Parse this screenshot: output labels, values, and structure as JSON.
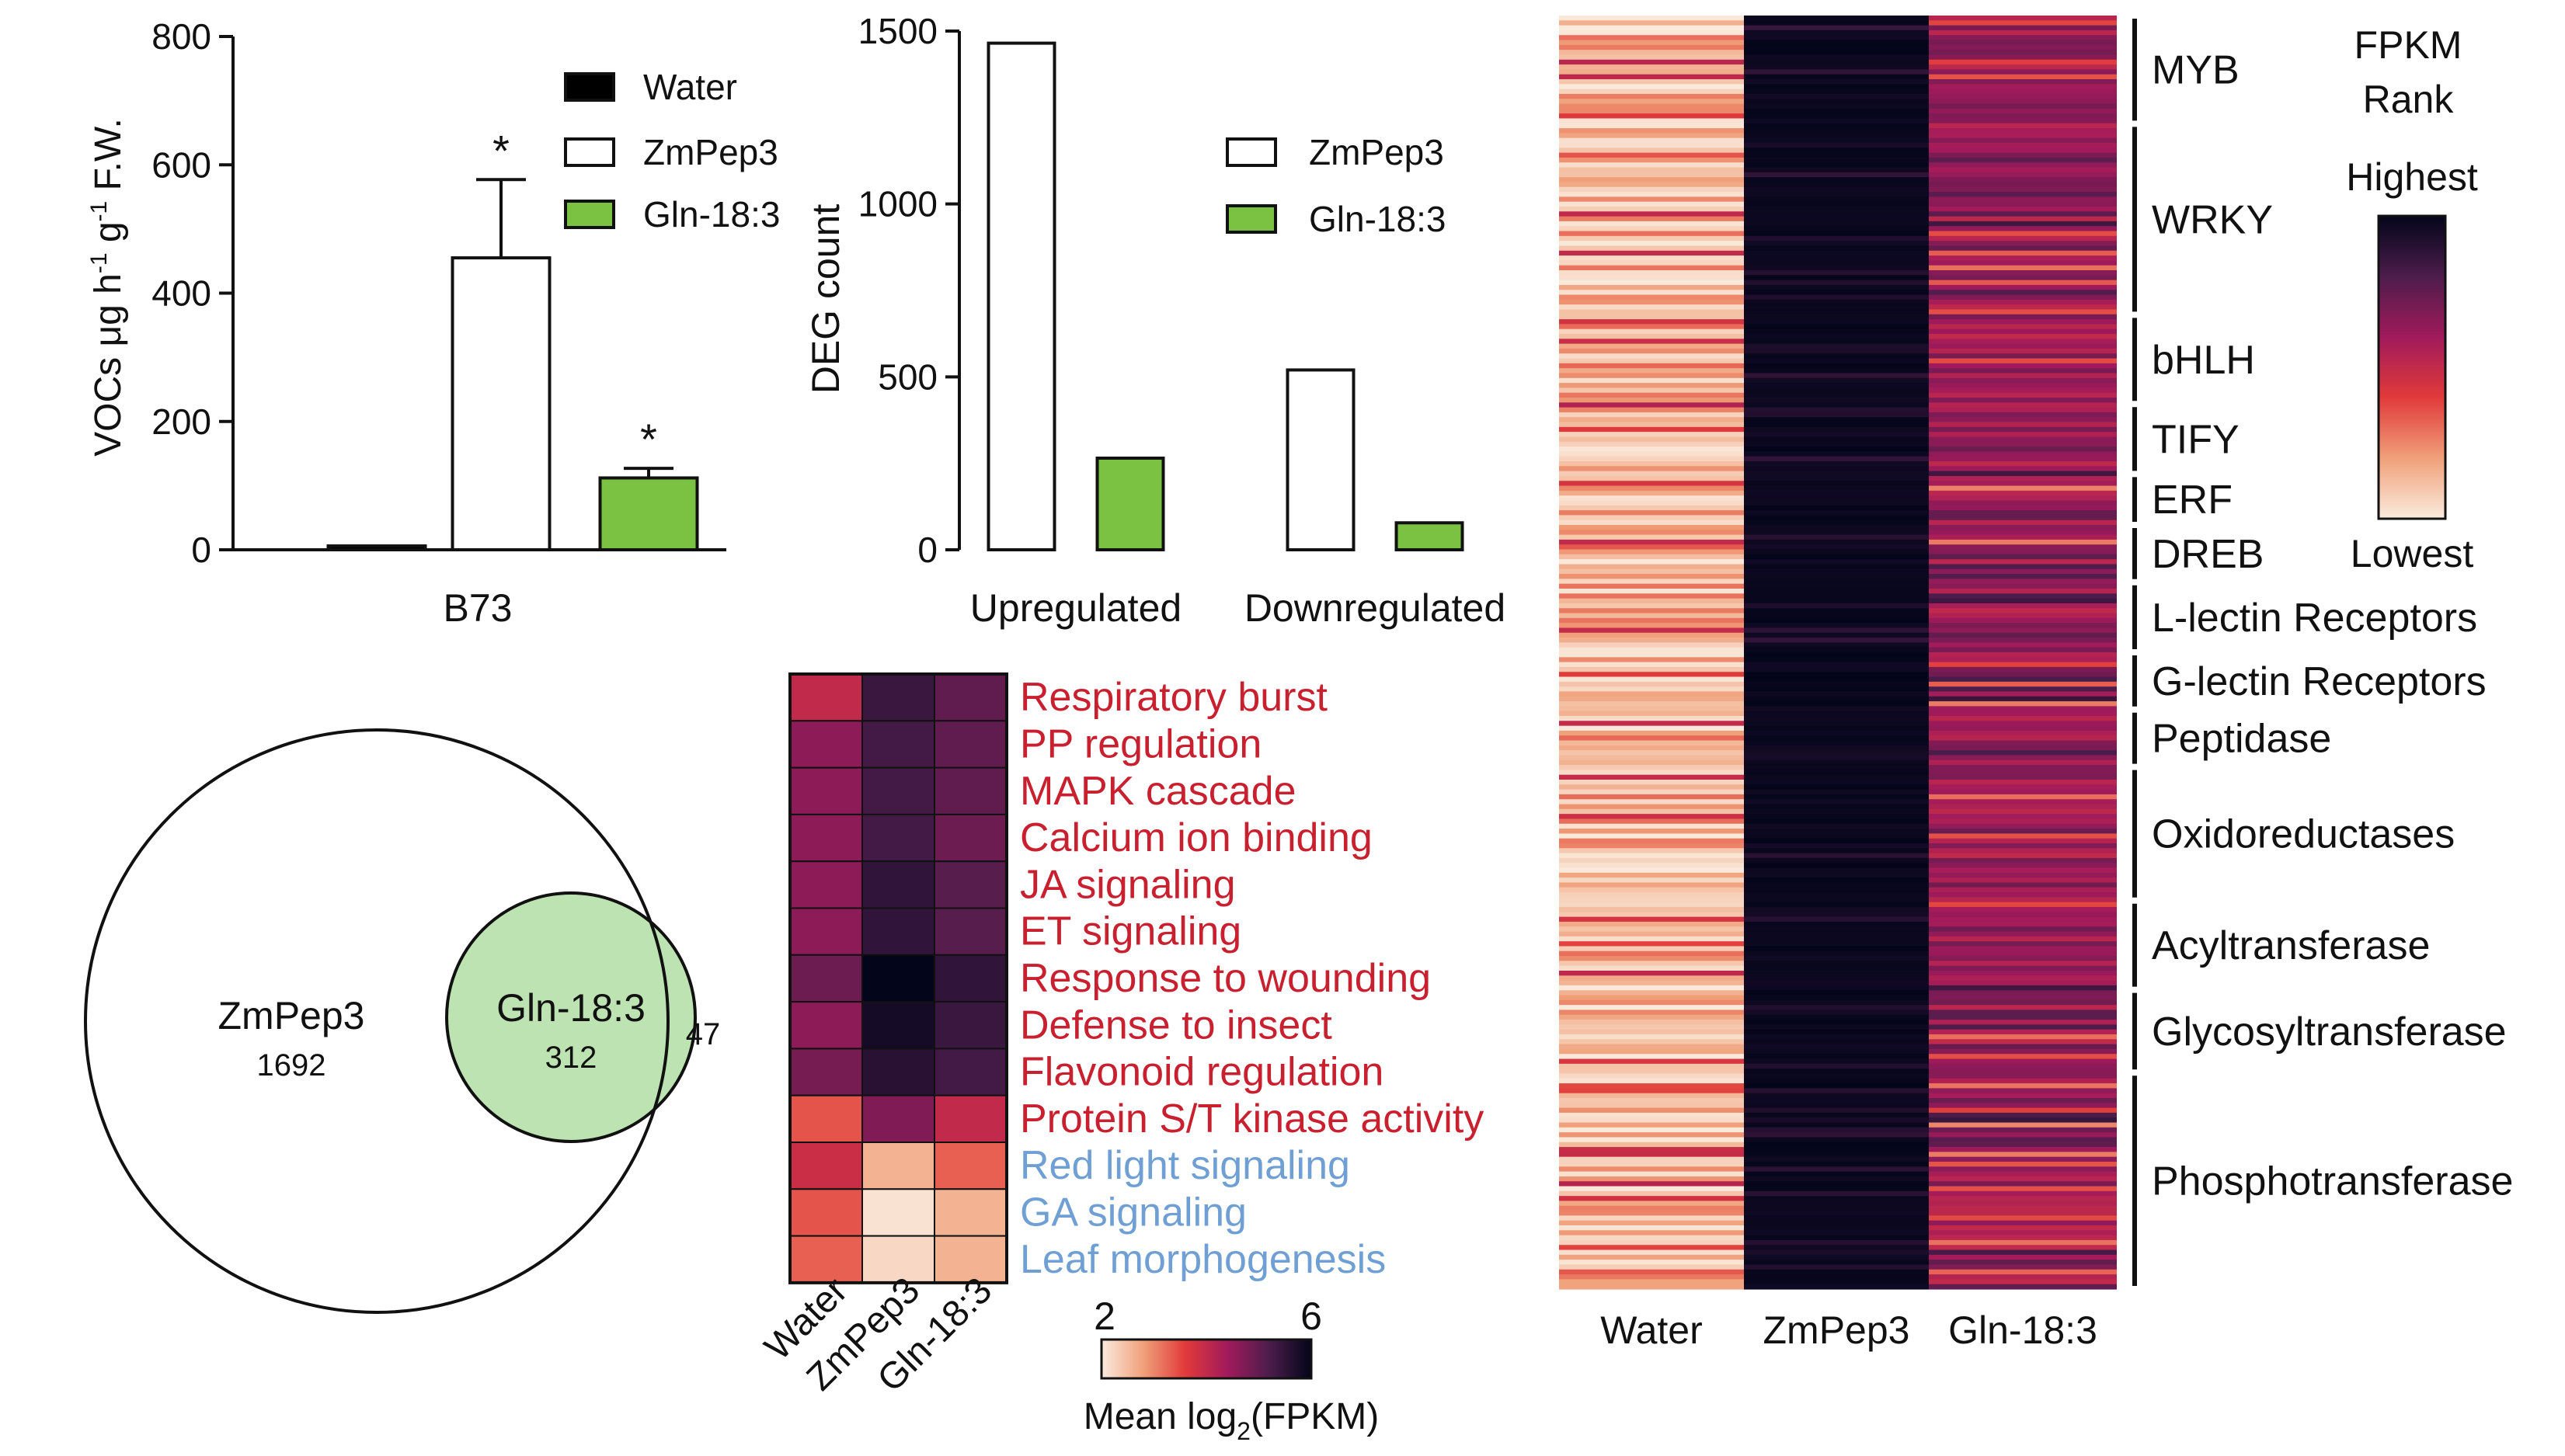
{
  "chart_data": [
    {
      "type": "bar",
      "categories": [
        "B73"
      ],
      "series": [
        {
          "name": "Water",
          "values": [
            6
          ],
          "error": [
            2
          ],
          "significant": [
            false
          ],
          "color": "#000000"
        },
        {
          "name": "ZmPep3",
          "values": [
            455
          ],
          "error": [
            122
          ],
          "significant": [
            true
          ],
          "color": "#ffffff"
        },
        {
          "name": "Gln-18:3",
          "values": [
            112
          ],
          "error": [
            15
          ],
          "significant": [
            true
          ],
          "color": "#7cc242"
        }
      ],
      "ylabel_parts": [
        "VOCs μg h",
        "-1",
        " g",
        "-1",
        " F.W."
      ],
      "yticks": [
        "0",
        "200",
        "400",
        "600",
        "800"
      ],
      "ylim": [
        0,
        800
      ],
      "significance_marker": "*",
      "legend": "top-right"
    },
    {
      "type": "bar",
      "categories": [
        "Upregulated",
        "Downregulated"
      ],
      "series": [
        {
          "name": "ZmPep3",
          "values": [
            1465,
            520
          ],
          "color": "#ffffff"
        },
        {
          "name": "Gln-18:3",
          "values": [
            265,
            78
          ],
          "color": "#7cc242"
        }
      ],
      "ylabel": "DEG count",
      "yticks": [
        "0",
        "500",
        "1000",
        "1500"
      ],
      "ylim": [
        0,
        1500
      ],
      "legend": "top-right"
    },
    {
      "type": "venn",
      "sets": [
        {
          "label": "ZmPep3",
          "value": "1692"
        },
        {
          "label": "Gln-18:3",
          "value": "312"
        }
      ],
      "intersection": "47"
    },
    {
      "type": "heatmap",
      "columns": [
        "Water",
        "ZmPep3",
        "Gln-18:3"
      ],
      "rows": [
        {
          "label": "Respiratory burst",
          "values": [
            4.0,
            5.4,
            5.0
          ],
          "color": "#c8202f"
        },
        {
          "label": "PP regulation",
          "values": [
            4.6,
            5.3,
            5.0
          ],
          "color": "#c8202f"
        },
        {
          "label": "MAPK cascade",
          "values": [
            4.6,
            5.3,
            5.0
          ],
          "color": "#c8202f"
        },
        {
          "label": "Calcium ion binding",
          "values": [
            4.6,
            5.3,
            4.9
          ],
          "color": "#c8202f"
        },
        {
          "label": "JA signaling",
          "values": [
            4.6,
            5.5,
            5.1
          ],
          "color": "#c8202f"
        },
        {
          "label": "ET signaling",
          "values": [
            4.6,
            5.5,
            5.1
          ],
          "color": "#c8202f"
        },
        {
          "label": "Response to wounding",
          "values": [
            4.9,
            6.0,
            5.5
          ],
          "color": "#c8202f"
        },
        {
          "label": "Defense to insect",
          "values": [
            4.6,
            5.8,
            5.4
          ],
          "color": "#c8202f"
        },
        {
          "label": "Flavonoid regulation",
          "values": [
            4.8,
            5.6,
            5.3
          ],
          "color": "#c8202f"
        },
        {
          "label": "Protein S/T kinase activity",
          "values": [
            3.4,
            4.7,
            4.0
          ],
          "color": "#c8202f"
        },
        {
          "label": "Red light signaling",
          "values": [
            3.9,
            2.6,
            3.3
          ],
          "color": "#6f9fd3"
        },
        {
          "label": "GA signaling",
          "values": [
            3.4,
            2.1,
            2.6
          ],
          "color": "#6f9fd3"
        },
        {
          "label": "Leaf morphogenesis",
          "values": [
            3.3,
            2.2,
            2.6
          ],
          "color": "#6f9fd3"
        }
      ],
      "scale_min": 2,
      "scale_max": 6,
      "scale_ticks": [
        "2",
        "6"
      ],
      "colorbar_label_parts": [
        "Mean log",
        "2",
        "(FPKM)"
      ],
      "colormap": [
        "#faebdd",
        "#f0a07a",
        "#e13a3a",
        "#a11a5b",
        "#4c1d4b",
        "#03051a"
      ]
    },
    {
      "type": "heatmap",
      "columns": [
        "Water",
        "ZmPep3",
        "Gln-18:3"
      ],
      "groups": [
        {
          "label": "MYB",
          "start": 0.0,
          "end": 0.085
        },
        {
          "label": "WRKY",
          "start": 0.085,
          "end": 0.235
        },
        {
          "label": "bHLH",
          "start": 0.235,
          "end": 0.305
        },
        {
          "label": "TIFY",
          "start": 0.305,
          "end": 0.36
        },
        {
          "label": "ERF",
          "start": 0.36,
          "end": 0.4
        },
        {
          "label": "DREB",
          "start": 0.4,
          "end": 0.445
        },
        {
          "label": "L-lectin Receptors",
          "start": 0.445,
          "end": 0.5
        },
        {
          "label": "G-lectin Receptors",
          "start": 0.5,
          "end": 0.545
        },
        {
          "label": "Peptidase",
          "start": 0.545,
          "end": 0.59
        },
        {
          "label": "Oxidoreductases",
          "start": 0.59,
          "end": 0.695
        },
        {
          "label": "Acyltransferase",
          "start": 0.695,
          "end": 0.765
        },
        {
          "label": "Glycosyltransferase",
          "start": 0.765,
          "end": 0.83
        },
        {
          "label": "Phosphotransferase",
          "start": 0.83,
          "end": 1.0
        }
      ],
      "legend_title": [
        "FPKM",
        "Rank"
      ],
      "legend_high": "Highest",
      "legend_low": "Lowest",
      "colormap": [
        "#faebdd",
        "#f0a07a",
        "#e13a3a",
        "#a11a5b",
        "#4c1d4b",
        "#03051a"
      ]
    }
  ]
}
